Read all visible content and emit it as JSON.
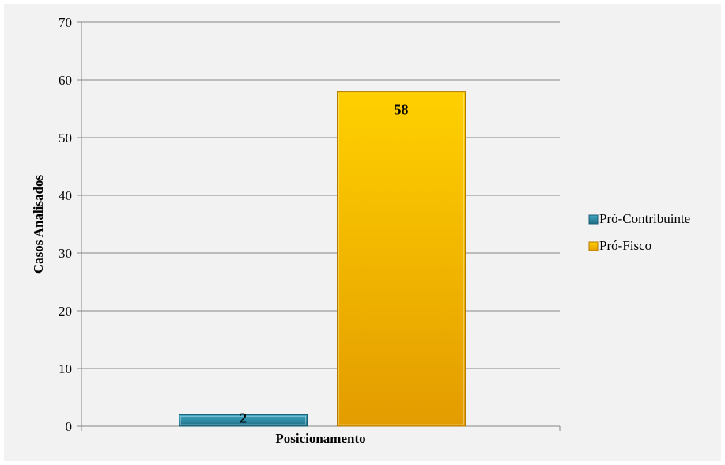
{
  "chart_data": {
    "type": "bar",
    "categories": [
      "Posicionamento"
    ],
    "series": [
      {
        "name": "Pró-Contribuinte",
        "values": [
          2
        ],
        "color": "#31869b"
      },
      {
        "name": "Pró-Fisco",
        "values": [
          58
        ],
        "color": "#ffc000"
      }
    ],
    "title": "",
    "xlabel": "Posicionamento",
    "ylabel": "Casos Analisados",
    "ylim": [
      0,
      70
    ],
    "yticks": [
      0,
      10,
      20,
      30,
      40,
      50,
      60,
      70
    ],
    "grid": true,
    "legend": "right",
    "data_labels": [
      "2",
      "58"
    ]
  }
}
